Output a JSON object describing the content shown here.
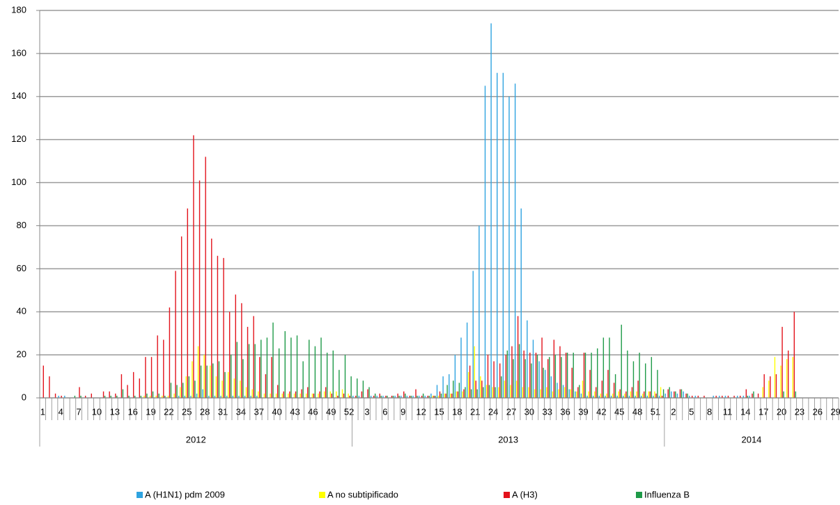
{
  "chart_data": {
    "type": "bar",
    "groups": [
      {
        "label": "2012",
        "categories": [
          1,
          null,
          null,
          4,
          null,
          null,
          7,
          null,
          null,
          10,
          null,
          null,
          13,
          null,
          null,
          16,
          null,
          null,
          19,
          null,
          null,
          22,
          null,
          null,
          25,
          null,
          null,
          28,
          null,
          null,
          31,
          null,
          null,
          34,
          null,
          null,
          37,
          null,
          null,
          40,
          null,
          null,
          43,
          null,
          null,
          46,
          null,
          null,
          49,
          null,
          null,
          52
        ]
      },
      {
        "label": "2013",
        "categories": [
          null,
          null,
          3,
          null,
          null,
          6,
          null,
          null,
          9,
          null,
          null,
          12,
          null,
          null,
          15,
          null,
          null,
          18,
          null,
          null,
          21,
          null,
          null,
          24,
          null,
          null,
          27,
          null,
          null,
          30,
          null,
          null,
          33,
          null,
          null,
          36,
          null,
          null,
          39,
          null,
          null,
          42,
          null,
          null,
          45,
          null,
          null,
          48,
          null,
          null,
          51,
          null
        ]
      },
      {
        "label": "2014",
        "categories": [
          null,
          2,
          null,
          null,
          5,
          null,
          null,
          8,
          null,
          null,
          11,
          null,
          null,
          14,
          null,
          null,
          17,
          null,
          null,
          20,
          null,
          null,
          23,
          null,
          null,
          26,
          null,
          null,
          29
        ]
      }
    ],
    "series": [
      {
        "name": "A (H1N1) pdm 2009",
        "color": "#2ea3e0",
        "values": [
          0,
          0,
          0,
          1,
          1,
          0,
          0,
          0,
          0,
          0,
          0,
          0,
          0,
          0,
          0,
          0,
          0,
          0,
          0,
          0,
          0,
          0,
          0,
          1,
          1,
          1,
          2,
          4,
          1,
          1,
          1,
          1,
          1,
          1,
          1,
          1,
          1,
          0,
          0,
          0,
          0,
          0,
          0,
          0,
          0,
          0,
          0,
          0,
          0,
          0,
          0,
          0,
          1,
          1,
          0,
          1,
          1,
          1,
          0,
          1,
          1,
          1,
          1,
          1,
          1,
          2,
          6,
          10,
          11,
          20,
          28,
          35,
          59,
          80,
          145,
          174,
          151,
          151,
          140,
          146,
          88,
          36,
          27,
          17,
          13,
          10,
          7,
          6,
          4,
          3,
          2,
          1,
          1,
          1,
          1,
          1,
          1,
          1,
          1,
          1,
          1,
          1,
          1,
          1,
          2,
          3,
          2,
          3,
          1,
          1,
          0,
          0,
          1,
          1,
          1,
          0,
          1,
          1,
          1,
          0,
          0,
          0,
          0,
          0,
          0,
          0,
          0,
          0,
          0,
          0,
          0,
          0,
          0
        ]
      },
      {
        "name": "A no subtipificado",
        "color": "#ffff00",
        "values": [
          0,
          0,
          0,
          0,
          0,
          0,
          0,
          0,
          0,
          0,
          0,
          0,
          0,
          0,
          0,
          0,
          0,
          1,
          1,
          1,
          1,
          1,
          2,
          5,
          10,
          17,
          24,
          20,
          15,
          10,
          8,
          12,
          9,
          8,
          5,
          4,
          3,
          2,
          2,
          2,
          2,
          2,
          2,
          2,
          2,
          2,
          2,
          3,
          3,
          3,
          4,
          2,
          0,
          0,
          0,
          0,
          0,
          0,
          0,
          0,
          0,
          0,
          0,
          0,
          0,
          1,
          1,
          2,
          2,
          3,
          3,
          12,
          24,
          10,
          6,
          5,
          5,
          8,
          6,
          8,
          5,
          5,
          4,
          4,
          5,
          3,
          4,
          5,
          4,
          3,
          8,
          3,
          3,
          2,
          2,
          2,
          3,
          2,
          3,
          3,
          2,
          3,
          3,
          5,
          0,
          0,
          0,
          0,
          0,
          0,
          0,
          0,
          0,
          0,
          0,
          0,
          0,
          0,
          0,
          0,
          5,
          8,
          19,
          15,
          18,
          19,
          0,
          0,
          0,
          0,
          0,
          0,
          0
        ]
      },
      {
        "name": "A (H3)",
        "color": "#e3121b",
        "values": [
          15,
          10,
          2,
          1,
          0,
          0,
          5,
          1,
          2,
          0,
          3,
          3,
          2,
          11,
          6,
          12,
          9,
          19,
          19,
          29,
          27,
          42,
          59,
          75,
          88,
          122,
          101,
          112,
          74,
          66,
          65,
          40,
          48,
          44,
          33,
          38,
          19,
          11,
          19,
          6,
          3,
          3,
          3,
          4,
          5,
          2,
          3,
          5,
          2,
          1,
          2,
          1,
          1,
          3,
          4,
          1,
          2,
          1,
          1,
          2,
          3,
          1,
          4,
          1,
          1,
          1,
          3,
          2,
          2,
          3,
          4,
          15,
          8,
          8,
          20,
          17,
          16,
          20,
          24,
          38,
          22,
          21,
          21,
          28,
          18,
          27,
          24,
          21,
          14,
          5,
          21,
          13,
          5,
          8,
          13,
          7,
          4,
          3,
          5,
          8,
          3,
          3,
          2,
          1,
          4,
          3,
          4,
          2,
          1,
          1,
          1,
          0,
          1,
          1,
          1,
          1,
          1,
          4,
          2,
          2,
          11,
          10,
          11,
          33,
          22,
          40,
          0,
          0,
          0,
          0,
          0,
          0,
          0
        ]
      },
      {
        "name": "Influenza  B",
        "color": "#1e9a48",
        "values": [
          0,
          0,
          0,
          0,
          0,
          1,
          1,
          0,
          0,
          0,
          1,
          1,
          1,
          4,
          1,
          1,
          1,
          2,
          3,
          2,
          1,
          7,
          6,
          7,
          10,
          8,
          15,
          15,
          16,
          17,
          12,
          20,
          26,
          18,
          25,
          25,
          27,
          28,
          35,
          23,
          31,
          28,
          29,
          17,
          27,
          24,
          28,
          21,
          22,
          13,
          20,
          10,
          9,
          8,
          5,
          2,
          1,
          1,
          1,
          1,
          2,
          1,
          1,
          2,
          1,
          1,
          2,
          6,
          8,
          7,
          5,
          4,
          4,
          5,
          6,
          5,
          10,
          22,
          18,
          25,
          18,
          16,
          20,
          14,
          19,
          20,
          19,
          21,
          21,
          6,
          21,
          21,
          23,
          28,
          28,
          11,
          34,
          22,
          17,
          21,
          16,
          19,
          13,
          4,
          5,
          3,
          4,
          2,
          0,
          0,
          0,
          0,
          0,
          0,
          0,
          0,
          0,
          1,
          3,
          0,
          0,
          0,
          0,
          3,
          0,
          3,
          0,
          0,
          0,
          0,
          0,
          0,
          0
        ]
      }
    ],
    "ylim": [
      0,
      180
    ],
    "yticks": [
      0,
      20,
      40,
      60,
      80,
      100,
      120,
      140,
      160,
      180
    ],
    "grid": true,
    "legend": "bottom"
  }
}
